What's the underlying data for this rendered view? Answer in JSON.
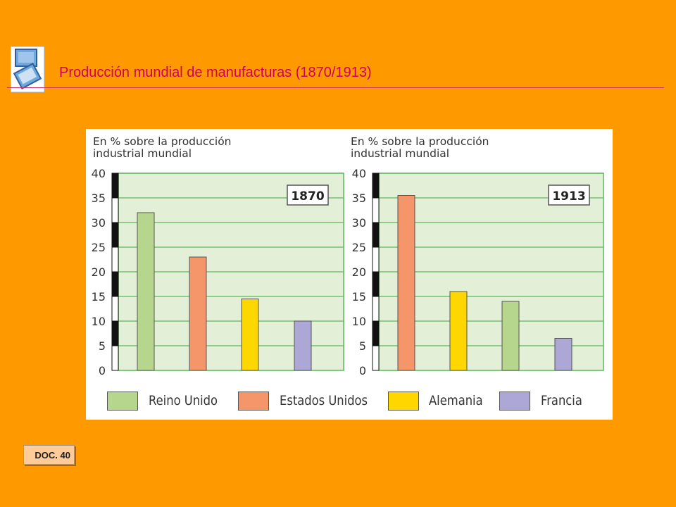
{
  "slide": {
    "title": "Producción mundial de manufacturas (1870/1913)",
    "doc_label": "DOC. 40",
    "icon": "monitor-document-icon"
  },
  "colors": {
    "background": "#FF9900",
    "title": "#CC0066",
    "plot_bg": "#E3EFD6",
    "grid": "#5CB85C",
    "Reino Unido": "#B5D68C",
    "Estados Unidos": "#F4956A",
    "Alemania": "#FFD700",
    "Francia": "#ADA7D6"
  },
  "legend": [
    {
      "label": "Reino Unido",
      "color": "#B5D68C"
    },
    {
      "label": "Estados Unidos",
      "color": "#F4956A"
    },
    {
      "label": "Alemania",
      "color": "#FFD700"
    },
    {
      "label": "Francia",
      "color": "#ADA7D6"
    }
  ],
  "chart_data": [
    {
      "type": "bar",
      "title": "1870",
      "ylabel": "En % sobre la producción industrial mundial",
      "ylim": [
        0,
        40
      ],
      "yticks": [
        0,
        5,
        10,
        15,
        20,
        25,
        30,
        35,
        40
      ],
      "grid": true,
      "legend_position": "bottom",
      "bars": [
        {
          "country": "Reino Unido",
          "value": 32
        },
        {
          "country": "Estados Unidos",
          "value": 23
        },
        {
          "country": "Alemania",
          "value": 14.5
        },
        {
          "country": "Francia",
          "value": 10
        }
      ]
    },
    {
      "type": "bar",
      "title": "1913",
      "ylabel": "En % sobre la producción industrial mundial",
      "ylim": [
        0,
        40
      ],
      "yticks": [
        0,
        5,
        10,
        15,
        20,
        25,
        30,
        35,
        40
      ],
      "grid": true,
      "legend_position": "bottom",
      "bars": [
        {
          "country": "Estados Unidos",
          "value": 35.5
        },
        {
          "country": "Alemania",
          "value": 16
        },
        {
          "country": "Reino Unido",
          "value": 14
        },
        {
          "country": "Francia",
          "value": 6.5
        }
      ]
    }
  ]
}
